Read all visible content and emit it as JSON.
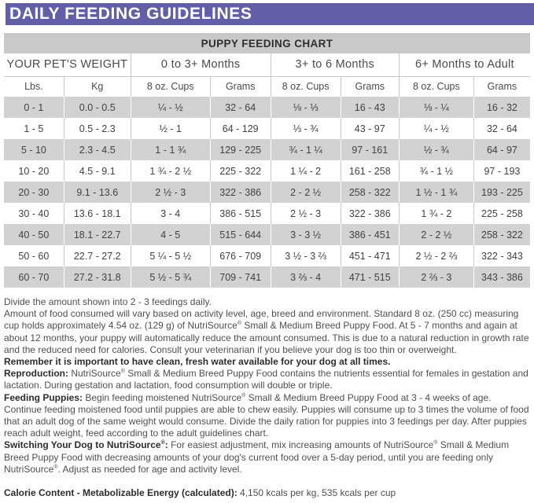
{
  "page": {
    "title": "DAILY FEEDING GUIDELINES"
  },
  "colors": {
    "header_purple": "#625fa8",
    "chart_band_gray": "#c9c9c9",
    "row_stripe_gray": "#d2d2d2",
    "grid_line_gray": "#c8c8c8"
  },
  "table": {
    "title": "PUPPY FEEDING CHART",
    "group_headers": [
      {
        "label": "YOUR PET'S WEIGHT",
        "colspan": 2
      },
      {
        "label": "0 to 3+ Months",
        "colspan": 2
      },
      {
        "label": "3+ to 6 Months",
        "colspan": 2
      },
      {
        "label": "6+ Months to Adult",
        "colspan": 2
      }
    ],
    "sub_headers": [
      "Lbs.",
      "Kg",
      "8 oz. Cups",
      "Grams",
      "8 oz. Cups",
      "Grams",
      "8 oz. Cups",
      "Grams"
    ],
    "rows": [
      [
        "0 - 1",
        "0.0 - 0.5",
        "¼ - ½",
        "32 - 64",
        "⅛ - ⅓",
        "16 - 43",
        "⅛ - ¼",
        "16 - 32"
      ],
      [
        "1 - 5",
        "0.5 - 2.3",
        "½ - 1",
        "64 - 129",
        "⅓ - ¾",
        "43 - 97",
        "¼ - ½",
        "32 - 64"
      ],
      [
        "5 - 10",
        "2.3 - 4.5",
        "1 - 1 ¾",
        "129 - 225",
        "¾ - 1 ¼",
        "97 - 161",
        "½ - ¾",
        "64 - 97"
      ],
      [
        "10 - 20",
        "4.5 - 9.1",
        "1 ¾ - 2 ½",
        "225 - 322",
        "1 ¼ - 2",
        "161 - 258",
        "¾ - 1 ½",
        "97 - 193"
      ],
      [
        "20 - 30",
        "9.1 - 13.6",
        "2 ½ - 3",
        "322 - 386",
        "2 - 2 ½",
        "258 - 322",
        "1 ½ - 1 ¾",
        "193 - 225"
      ],
      [
        "30 - 40",
        "13.6 - 18.1",
        "3 - 4",
        "386 - 515",
        "2 ½ - 3",
        "322 - 386",
        "1 ¾ - 2",
        "225 - 258"
      ],
      [
        "40 - 50",
        "18.1 - 22.7",
        "4 - 5",
        "515 - 644",
        "3 - 3 ½",
        "386 - 451",
        "2 - 2 ½",
        "258 - 322"
      ],
      [
        "50 - 60",
        "22.7 - 27.2",
        "5 ¼ - 5 ½",
        "676 - 709",
        "3 ½ - 3 ⅔",
        "451 - 471",
        "2 ½ - 2 ⅔",
        "322 - 343"
      ],
      [
        "60 - 70",
        "27.2 - 31.8",
        "5 ½ - 5 ¾",
        "709 - 741",
        "3 ⅔ - 4",
        "471 - 515",
        "2 ⅔ - 3",
        "343 - 386"
      ]
    ]
  },
  "notes": {
    "paragraphs": [
      {
        "lead": "",
        "text": "Divide the amount shown into 2 - 3 feedings daily.",
        "all_bold": false,
        "gap_before": false
      },
      {
        "lead": "",
        "text": "Amount of food consumed will vary based on activity level, age, breed and environment. Standard 8 oz. (250 cc) measuring cup holds approximately 4.54 oz. (129 g) of NutriSource® Small & Medium Breed Puppy Food. At 5 - 7 months and again at about 12 months, your puppy will automatically reduce the amount consumed. This is due to a natural reduction in growth rate and the reduced need for calories. Consult your veterinarian if you believe your dog is too thin or overweight.",
        "all_bold": false,
        "gap_before": false
      },
      {
        "lead": "",
        "text": "Remember it is important to have clean, fresh water available for your dog at all times.",
        "all_bold": true,
        "gap_before": false
      },
      {
        "lead": "Reproduction:",
        "text": " NutriSource® Small & Medium Breed Puppy Food contains the nutrients essential for females in gestation and lactation. During gestation and lactation, food consumption will double or triple.",
        "all_bold": false,
        "gap_before": false
      },
      {
        "lead": "Feeding Puppies:",
        "text": " Begin feeding moistened NutriSource® Small & Medium Breed Puppy Food at 3 - 4 weeks of age. Continue feeding moistened food until puppies are able to chew easily. Puppies will consume up to 3 times the volume of food that an adult dog of the same weight would consume. Divide the daily ration for puppies into 3 feedings per day. After puppies reach adult weight, feed according to the adult guidelines chart.",
        "all_bold": false,
        "gap_before": false
      },
      {
        "lead": "Switching Your Dog to NutriSource®:",
        "text": " For easiest adjustment, mix increasing amounts of NutriSource® Small & Medium Breed Puppy Food with decreasing amounts of your dog's current food over a 5-day period, until you are feeding only NutriSource®. Adjust as needed for age and activity level.",
        "all_bold": false,
        "gap_before": false
      },
      {
        "lead": "Calorie Content - Metabolizable Energy (calculated):",
        "text": " 4,150 kcals per kg, 535 kcals per cup",
        "all_bold": false,
        "gap_before": true
      }
    ]
  }
}
